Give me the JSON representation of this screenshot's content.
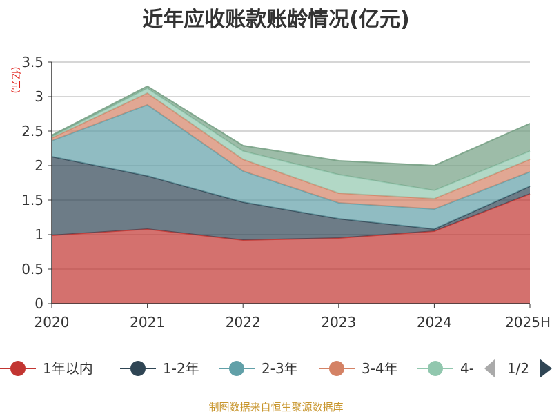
{
  "chart_data": {
    "type": "area",
    "title": "近年应收账款账龄情况(亿元)",
    "ylabel": "(亿元)",
    "ylim": [
      0,
      3.5
    ],
    "yticks": [
      "0",
      "0.5",
      "1",
      "1.5",
      "2",
      "2.5",
      "3",
      "3.5"
    ],
    "categories": [
      "2020",
      "2021",
      "2022",
      "2023",
      "2024",
      "2025H"
    ],
    "stacked": true,
    "grid": true,
    "legend_position": "bottom",
    "series": [
      {
        "name": "1年以内",
        "color": "#c23531",
        "values": [
          0.99,
          1.08,
          0.92,
          0.95,
          1.05,
          1.59
        ]
      },
      {
        "name": "1-2年",
        "color": "#2f4554",
        "values": [
          1.14,
          0.77,
          0.55,
          0.28,
          0.03,
          0.11
        ]
      },
      {
        "name": "2-3年",
        "color": "#61a0a8",
        "values": [
          0.23,
          1.03,
          0.45,
          0.23,
          0.29,
          0.21
        ]
      },
      {
        "name": "3-4年",
        "color": "#d48265",
        "values": [
          0.04,
          0.17,
          0.17,
          0.14,
          0.15,
          0.18
        ]
      },
      {
        "name": "4-",
        "color": "#91c7ae",
        "values": [
          0.02,
          0.07,
          0.12,
          0.27,
          0.12,
          0.12
        ]
      },
      {
        "color": "#749f83",
        "values": [
          0.02,
          0.03,
          0.08,
          0.2,
          0.36,
          0.4
        ]
      }
    ],
    "legend_page": "1/2",
    "source": "制图数据来自恒生聚源数据库"
  }
}
